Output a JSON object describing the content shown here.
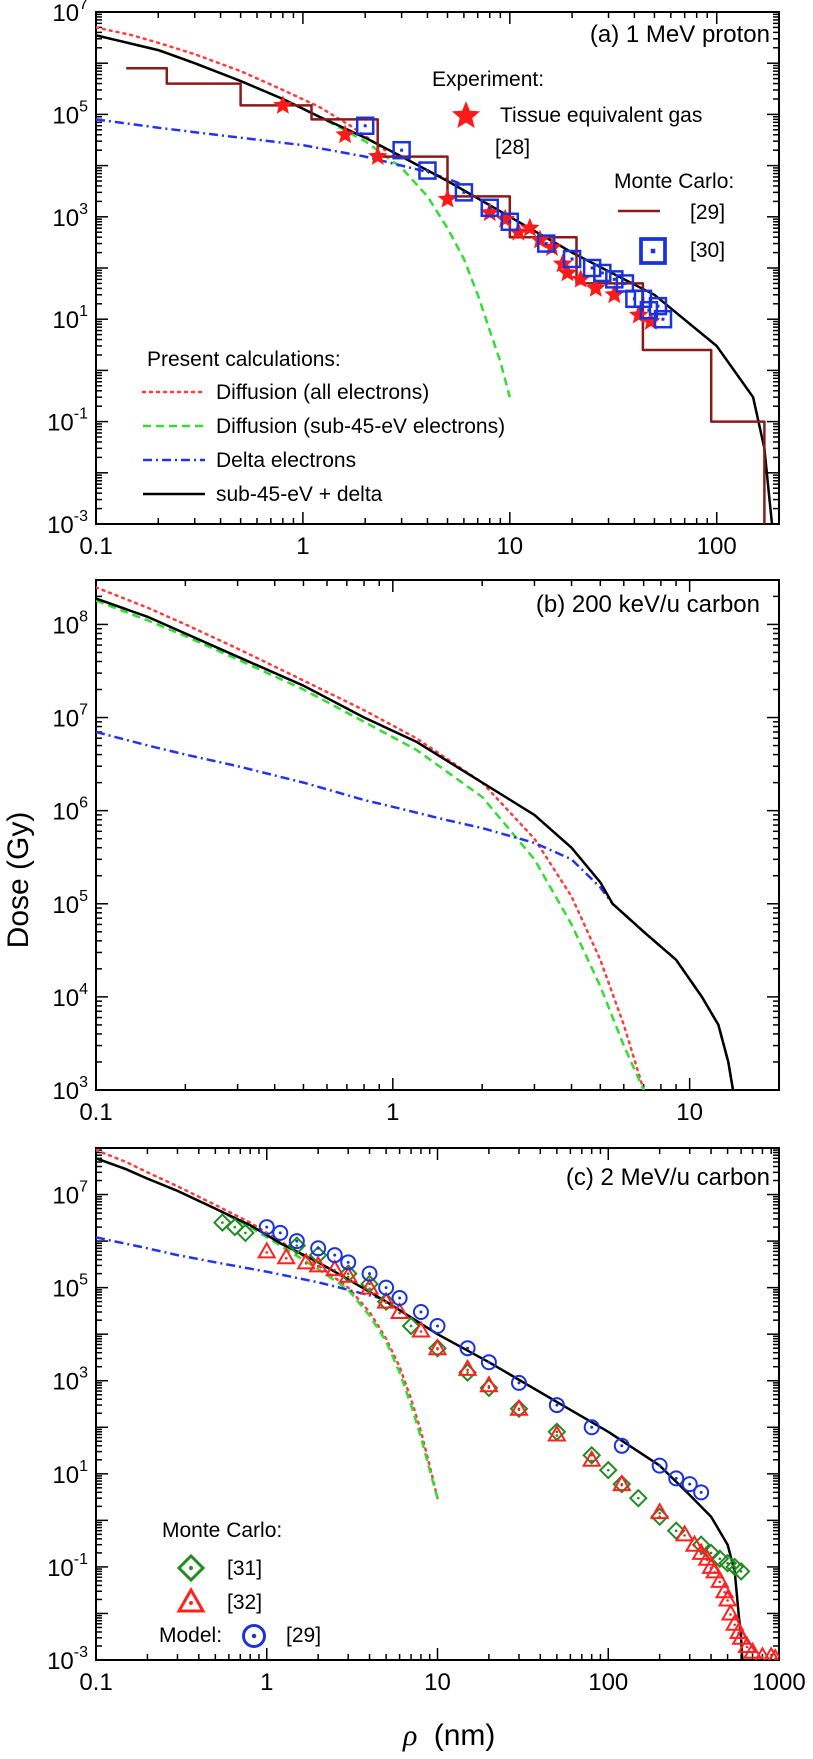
{
  "figure": {
    "ylabel": "Dose (Gy)",
    "xlabel_symbol": "ρ",
    "xlabel_unit": "(nm)"
  },
  "colors": {
    "diffusion_all": "#ff3b3b",
    "diffusion_sub45": "#33dd33",
    "delta": "#2233ee",
    "sum": "#000000",
    "mc29_line": "#8b1a1a",
    "exp28": "#ff1a1a",
    "mc30": "#1a33dd",
    "mc31": "#228b22",
    "mc32": "#ff2020",
    "model29": "#1a33dd"
  },
  "chart_data": [
    {
      "type": "line",
      "title": "(a) 1 MeV proton",
      "xscale": "log",
      "yscale": "log",
      "xlim": [
        0.1,
        200
      ],
      "ylim": [
        0.001,
        10000000
      ],
      "xticks": [
        "0.1",
        "1",
        "10",
        "100"
      ],
      "yticks": [
        "10^-3",
        "10^-1",
        "10^1",
        "10^3",
        "10^5",
        "10^7"
      ],
      "legend_header_present": "Present calculations:",
      "legend_header_experiment": "Experiment:",
      "legend_header_mc": "Monte Carlo:",
      "series": [
        {
          "name": "Diffusion (all electrons)",
          "style": "dotted",
          "color_key": "diffusion_all",
          "x": [
            0.1,
            0.15,
            0.2,
            0.3,
            0.5,
            0.8,
            1.2,
            1.7,
            2.5
          ],
          "y": [
            5000000,
            3500000,
            2500000,
            1500000,
            700000,
            300000,
            140000,
            60000,
            20000
          ]
        },
        {
          "name": "Diffusion (sub-45-eV electrons)",
          "style": "dashed",
          "color_key": "diffusion_sub45",
          "x": [
            0.1,
            0.2,
            0.3,
            0.5,
            0.8,
            1.2,
            2,
            3,
            4,
            5,
            6,
            7,
            8,
            9,
            10
          ],
          "y": [
            3500000,
            1800000,
            1000000,
            450000,
            200000,
            90000,
            30000,
            9000,
            2500,
            600,
            150,
            30,
            6,
            1.5,
            0.3
          ]
        },
        {
          "name": "Delta electrons",
          "style": "dashdot",
          "color_key": "delta",
          "x": [
            0.1,
            0.2,
            0.3,
            0.5,
            1,
            2,
            3,
            4,
            5,
            6
          ],
          "y": [
            80000,
            55000,
            45000,
            35000,
            25000,
            15000,
            10000,
            7500,
            5500,
            4200
          ]
        },
        {
          "name": "sub-45-eV + delta",
          "style": "solid",
          "color_key": "sum",
          "x": [
            0.1,
            0.2,
            0.3,
            0.5,
            0.8,
            1.2,
            2,
            3,
            5,
            10,
            20,
            50,
            100,
            150,
            170,
            180,
            185
          ],
          "y": [
            3500000,
            1800000,
            1000000,
            450000,
            200000,
            90000,
            35000,
            15000,
            5000,
            1000,
            200,
            30,
            3,
            0.3,
            0.03,
            0.003,
            0.001
          ]
        },
        {
          "name": "[29]",
          "style": "step",
          "color_key": "mc29_line",
          "x": [
            0.14,
            0.22,
            0.22,
            0.5,
            0.5,
            1.1,
            1.1,
            2.3,
            2.3,
            5,
            5,
            10,
            10,
            21,
            21,
            44,
            44,
            94,
            94,
            170,
            170
          ],
          "y": [
            800000,
            800000,
            400000,
            400000,
            150000,
            150000,
            80000,
            80000,
            15000,
            15000,
            2500,
            2500,
            400,
            400,
            50,
            50,
            2.5,
            2.5,
            0.1,
            0.1,
            0.001
          ]
        },
        {
          "name": "Tissue equivalent gas",
          "ref": "[28]",
          "style": "star",
          "color_key": "exp28",
          "x": [
            0.8,
            1.6,
            2.3,
            5,
            8,
            9.5,
            11,
            12.5,
            14,
            16,
            18,
            19,
            22,
            26,
            32,
            42,
            48
          ],
          "y": [
            150000,
            40000,
            15000,
            2200,
            1200,
            900,
            500,
            600,
            350,
            250,
            120,
            80,
            60,
            40,
            30,
            12,
            9
          ]
        },
        {
          "name": "[30]",
          "style": "square-dot",
          "color_key": "mc30",
          "x": [
            2,
            3,
            4,
            6,
            8,
            10,
            15,
            20,
            25,
            28,
            32,
            36,
            40,
            44,
            47,
            52,
            55
          ],
          "y": [
            60000,
            20000,
            8000,
            3000,
            1500,
            800,
            300,
            150,
            100,
            80,
            60,
            50,
            25,
            25,
            15,
            18,
            10
          ]
        }
      ]
    },
    {
      "type": "line",
      "title": "(b) 200 keV/u carbon",
      "xscale": "log",
      "yscale": "log",
      "xlim": [
        0.1,
        20
      ],
      "ylim": [
        1000,
        300000000
      ],
      "xticks": [
        "0.1",
        "1",
        "10"
      ],
      "yticks": [
        "10^3",
        "10^4",
        "10^5",
        "10^6",
        "10^7",
        "10^8"
      ],
      "series": [
        {
          "style": "dotted",
          "color_key": "diffusion_all",
          "x": [
            0.1,
            0.15,
            0.2,
            0.3,
            0.5,
            0.8,
            1.2,
            2,
            3,
            4,
            5,
            6,
            7
          ],
          "y": [
            250000000,
            150000000,
            100000000,
            55000000,
            25000000,
            12000000,
            6000000,
            2000000,
            500000,
            120000,
            25000,
            5000,
            1000
          ]
        },
        {
          "style": "dashed",
          "color_key": "diffusion_sub45",
          "x": [
            0.1,
            0.15,
            0.2,
            0.3,
            0.5,
            0.8,
            1.2,
            2,
            3,
            4,
            5,
            6,
            7
          ],
          "y": [
            180000000,
            110000000,
            75000000,
            42000000,
            20000000,
            9000000,
            4500000,
            1400000,
            300000,
            60000,
            13000,
            3000,
            1000
          ]
        },
        {
          "style": "dashdot",
          "color_key": "delta",
          "x": [
            0.1,
            0.15,
            0.2,
            0.3,
            0.5,
            0.8,
            1,
            1.5,
            2,
            3,
            4,
            5,
            5.5,
            7,
            9,
            11,
            12.5,
            13.5,
            14
          ],
          "y": [
            7000000,
            5000000,
            4000000,
            3000000,
            2000000,
            1300000,
            1100000,
            800000,
            650000,
            450000,
            300000,
            150000,
            100000,
            50000,
            25000,
            10000,
            5000,
            2000,
            1000
          ]
        },
        {
          "style": "solid",
          "color_key": "sum",
          "x": [
            0.1,
            0.15,
            0.2,
            0.3,
            0.5,
            0.8,
            1.2,
            2,
            3,
            4,
            5,
            5.5,
            7,
            9,
            11,
            12.5,
            13.5,
            14
          ],
          "y": [
            190000000,
            120000000,
            80000000,
            45000000,
            22000000,
            10000000,
            5500000,
            2000000,
            900000,
            400000,
            170000,
            100000,
            50000,
            25000,
            10000,
            5000,
            2000,
            1000
          ]
        }
      ]
    },
    {
      "type": "line",
      "title": "(c) 2 MeV/u carbon",
      "xscale": "log",
      "yscale": "log",
      "xlim": [
        0.1,
        1000
      ],
      "ylim": [
        0.001,
        100000000
      ],
      "xticks": [
        "0.1",
        "1",
        "10",
        "100",
        "1000"
      ],
      "yticks": [
        "10^-3",
        "10^-1",
        "10^1",
        "10^3",
        "10^5",
        "10^7"
      ],
      "legend_header_mc": "Monte Carlo:",
      "legend_header_model": "Model:",
      "series": [
        {
          "style": "dotted",
          "color_key": "diffusion_all",
          "x": [
            0.1,
            0.15,
            0.2,
            0.3,
            0.5,
            0.8,
            1.2,
            2,
            3,
            4,
            5,
            6,
            7,
            8,
            9,
            10
          ],
          "y": [
            90000000,
            50000000,
            30000000,
            15000000,
            6000000,
            2500000,
            1000000,
            300000,
            100000,
            30000,
            8000,
            2000,
            400,
            80,
            15,
            3
          ]
        },
        {
          "style": "dashed",
          "color_key": "diffusion_sub45",
          "x": [
            0.1,
            0.15,
            0.2,
            0.3,
            0.5,
            0.8,
            1.2,
            2,
            3,
            4,
            5,
            6,
            7,
            8,
            9,
            10
          ],
          "y": [
            60000000,
            35000000,
            22000000,
            12000000,
            5000000,
            2000000,
            800000,
            250000,
            90000,
            25000,
            7000,
            1500,
            300,
            60,
            12,
            3
          ]
        },
        {
          "style": "dashdot",
          "color_key": "delta",
          "x": [
            0.1,
            0.2,
            0.3,
            0.5,
            1,
            2,
            3,
            5
          ],
          "y": [
            1200000,
            700000,
            500000,
            350000,
            220000,
            130000,
            90000,
            55000
          ]
        },
        {
          "style": "solid",
          "color_key": "sum",
          "x": [
            0.1,
            0.15,
            0.2,
            0.3,
            0.5,
            0.8,
            1.2,
            2,
            3,
            5,
            10,
            20,
            50,
            100,
            200,
            300,
            400,
            500,
            550,
            580,
            600,
            610
          ],
          "y": [
            60000000,
            35000000,
            22000000,
            12000000,
            5000000,
            2200000,
            900000,
            350000,
            150000,
            50000,
            10000,
            2500,
            350,
            80,
            15,
            3.5,
            1.2,
            0.3,
            0.08,
            0.01,
            0.003,
            0.001
          ]
        },
        {
          "name": "[31]",
          "style": "diamond-dot",
          "color_key": "mc31",
          "x": [
            0.55,
            0.65,
            0.75,
            1.5,
            2,
            3,
            4,
            5,
            7,
            10,
            15,
            20,
            30,
            50,
            80,
            100,
            120,
            150,
            200,
            250,
            350,
            400,
            450,
            500,
            550,
            600
          ],
          "y": [
            2500000,
            2000000,
            1500000,
            800000,
            500000,
            200000,
            120000,
            50000,
            15000,
            5000,
            1500,
            700,
            250,
            80,
            25,
            12,
            6,
            3,
            1.2,
            0.6,
            0.3,
            0.2,
            0.15,
            0.12,
            0.1,
            0.08
          ]
        },
        {
          "name": "[32]",
          "style": "triangle-dot",
          "color_key": "mc32",
          "x": [
            1,
            1.3,
            1.7,
            2,
            2.5,
            3,
            4,
            5,
            6,
            8,
            10,
            15,
            20,
            30,
            50,
            80,
            120,
            200,
            280,
            320,
            350,
            380,
            400,
            420,
            450,
            480,
            500,
            520,
            550,
            580,
            600,
            650,
            700,
            800,
            900,
            950
          ],
          "y": [
            600000,
            450000,
            350000,
            300000,
            250000,
            180000,
            100000,
            50000,
            30000,
            12000,
            5000,
            1800,
            800,
            250,
            70,
            20,
            6,
            1.5,
            0.5,
            0.3,
            0.2,
            0.15,
            0.1,
            0.08,
            0.05,
            0.03,
            0.02,
            0.01,
            0.006,
            0.004,
            0.003,
            0.002,
            0.0015,
            0.0012,
            0.0012,
            0.0011
          ]
        },
        {
          "name": "[29]",
          "style": "circle-dot",
          "color_key": "model29",
          "x": [
            1,
            1.2,
            1.5,
            2,
            2.5,
            3,
            4,
            5,
            6,
            8,
            10,
            15,
            20,
            30,
            50,
            80,
            120,
            200,
            250,
            300,
            350
          ],
          "y": [
            2000000,
            1500000,
            1000000,
            700000,
            500000,
            350000,
            200000,
            100000,
            60000,
            30000,
            15000,
            5000,
            2500,
            900,
            300,
            100,
            40,
            15,
            8,
            6,
            4
          ]
        }
      ]
    }
  ]
}
